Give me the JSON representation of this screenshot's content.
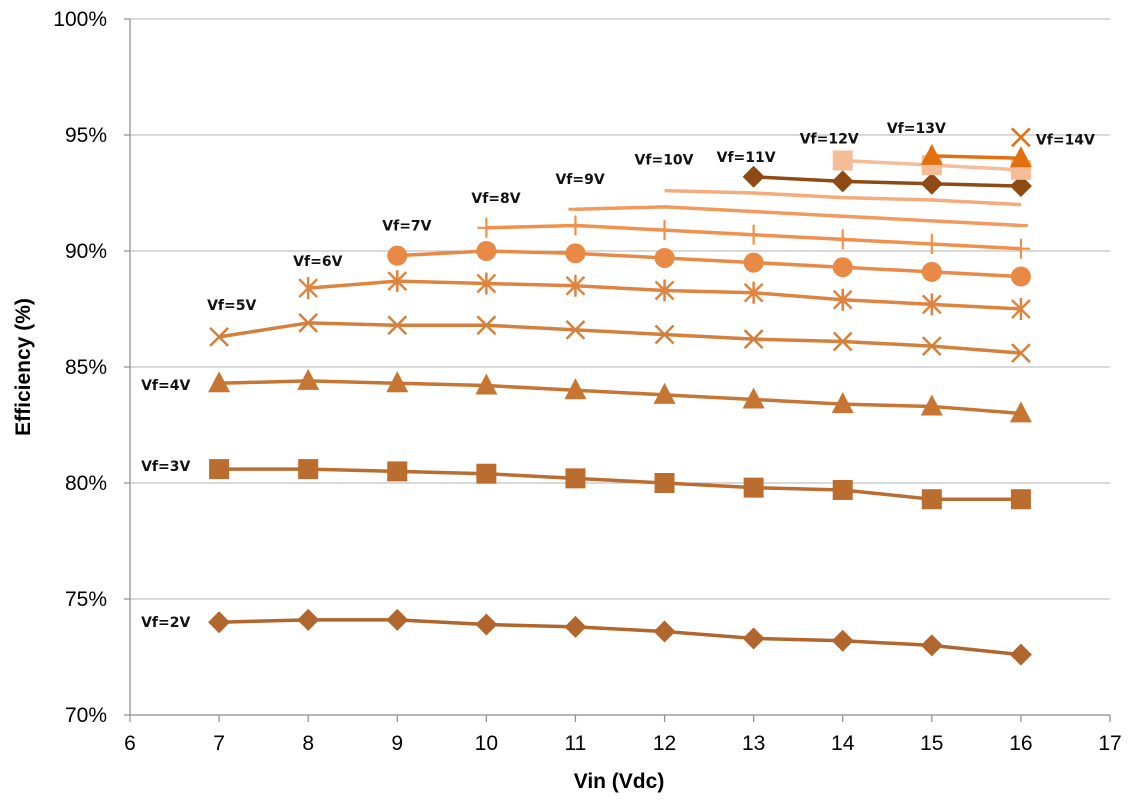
{
  "chart_data": {
    "type": "line",
    "title": "",
    "xlabel": "Vin (Vdc)",
    "ylabel": "Efficiency (%)",
    "xlim": [
      6,
      17
    ],
    "ylim": [
      70,
      100
    ],
    "x_ticks": [
      "6",
      "7",
      "8",
      "9",
      "10",
      "11",
      "12",
      "13",
      "14",
      "15",
      "16",
      "17"
    ],
    "y_ticks": [
      "70%",
      "75%",
      "80%",
      "85%",
      "90%",
      "95%",
      "100%"
    ],
    "grid": "horizontal",
    "legend": "none",
    "series": [
      {
        "name": "Vf=2V",
        "color": "#b0662c",
        "marker": "diamond",
        "x": [
          7,
          8,
          9,
          10,
          11,
          12,
          13,
          14,
          15,
          16
        ],
        "y": [
          74.0,
          74.1,
          74.1,
          73.9,
          73.8,
          73.6,
          73.3,
          73.2,
          73.0,
          72.6
        ]
      },
      {
        "name": "Vf=3V",
        "color": "#bb6d30",
        "marker": "square",
        "x": [
          7,
          8,
          9,
          10,
          11,
          12,
          13,
          14,
          15,
          16
        ],
        "y": [
          80.6,
          80.6,
          80.5,
          80.4,
          80.2,
          80.0,
          79.8,
          79.7,
          79.3,
          79.3
        ]
      },
      {
        "name": "Vf=4V",
        "color": "#c77532",
        "marker": "triangle",
        "x": [
          7,
          8,
          9,
          10,
          11,
          12,
          13,
          14,
          15,
          16
        ],
        "y": [
          84.3,
          84.4,
          84.3,
          84.2,
          84.0,
          83.8,
          83.6,
          83.4,
          83.3,
          83.0
        ]
      },
      {
        "name": "Vf=5V",
        "color": "#d4803d",
        "marker": "x",
        "x": [
          7,
          8,
          9,
          10,
          11,
          12,
          13,
          14,
          15,
          16
        ],
        "y": [
          86.3,
          86.9,
          86.8,
          86.8,
          86.6,
          86.4,
          86.2,
          86.1,
          85.9,
          85.6
        ]
      },
      {
        "name": "Vf=6V",
        "color": "#df8440",
        "marker": "star",
        "x": [
          8,
          9,
          10,
          11,
          12,
          13,
          14,
          15,
          16
        ],
        "y": [
          88.4,
          88.7,
          88.6,
          88.5,
          88.3,
          88.2,
          87.9,
          87.7,
          87.5
        ]
      },
      {
        "name": "Vf=7V",
        "color": "#e88a45",
        "marker": "circle",
        "x": [
          9,
          10,
          11,
          12,
          13,
          14,
          15,
          16
        ],
        "y": [
          89.8,
          90.0,
          89.9,
          89.7,
          89.5,
          89.3,
          89.1,
          88.9
        ]
      },
      {
        "name": "Vf=8V",
        "color": "#f0904a",
        "marker": "plus",
        "x": [
          10,
          11,
          12,
          13,
          14,
          15,
          16
        ],
        "y": [
          91.0,
          91.1,
          90.9,
          90.7,
          90.5,
          90.3,
          90.1
        ]
      },
      {
        "name": "Vf=9V",
        "color": "#f29a5e",
        "marker": "dash",
        "x": [
          11,
          12,
          13,
          14,
          15,
          16
        ],
        "y": [
          91.8,
          91.9,
          91.7,
          91.5,
          91.3,
          91.1
        ]
      },
      {
        "name": "Vf=10V",
        "color": "#f4ac7c",
        "marker": "none",
        "x": [
          12,
          13,
          14,
          15,
          16
        ],
        "y": [
          92.6,
          92.5,
          92.3,
          92.2,
          92.0
        ]
      },
      {
        "name": "Vf=11V",
        "color": "#8e4a12",
        "marker": "diamond",
        "x": [
          13,
          14,
          15,
          16
        ],
        "y": [
          93.2,
          93.0,
          92.9,
          92.8
        ]
      },
      {
        "name": "Vf=12V",
        "color": "#f5bc98",
        "marker": "square",
        "x": [
          14,
          15,
          16
        ],
        "y": [
          93.9,
          93.7,
          93.5
        ]
      },
      {
        "name": "Vf=13V",
        "color": "#e3700f",
        "marker": "triangle",
        "x": [
          15,
          16
        ],
        "y": [
          94.1,
          94.0
        ]
      },
      {
        "name": "Vf=14V",
        "color": "#e3700f",
        "marker": "x",
        "x": [
          16
        ],
        "y": [
          94.9
        ]
      }
    ]
  }
}
